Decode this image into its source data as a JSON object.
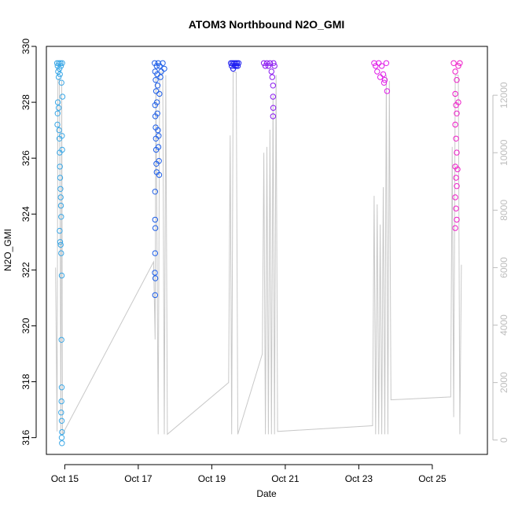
{
  "chart_data": {
    "type": "scatter",
    "title": "ATOM3 Northbound N2O_GMI",
    "xlabel": "Date",
    "ylabel": "N2O_GMI",
    "x_is_date": true,
    "xlim": [
      "2017-10-14T12:00:00",
      "2017-10-26T12:00:00"
    ],
    "ylim": [
      315.4,
      330.0
    ],
    "y2lim": [
      -500,
      13700
    ],
    "x_ticks": [
      {
        "value": "2017-10-15T00:00:00",
        "label": "Oct 15"
      },
      {
        "value": "2017-10-17T00:00:00",
        "label": "Oct 17"
      },
      {
        "value": "2017-10-19T00:00:00",
        "label": "Oct 19"
      },
      {
        "value": "2017-10-21T00:00:00",
        "label": "Oct 21"
      },
      {
        "value": "2017-10-23T00:00:00",
        "label": "Oct 23"
      },
      {
        "value": "2017-10-25T00:00:00",
        "label": "Oct 25"
      }
    ],
    "y_ticks": [
      316,
      318,
      320,
      322,
      324,
      326,
      328,
      330
    ],
    "y2_ticks": [
      0,
      2000,
      4000,
      6000,
      8000,
      10000,
      12000
    ],
    "grid": false,
    "legend": "none",
    "series": [
      {
        "color": "#3aa7e6",
        "points": [
          [
            "2017-10-14T19:00:00",
            329.4
          ],
          [
            "2017-10-14T19:20:00",
            329.3
          ],
          [
            "2017-10-14T19:40:00",
            329.1
          ],
          [
            "2017-10-14T20:00:00",
            328.9
          ],
          [
            "2017-10-14T20:10:00",
            329.4
          ],
          [
            "2017-10-14T20:30:00",
            329.2
          ],
          [
            "2017-10-14T20:50:00",
            329.0
          ],
          [
            "2017-10-14T21:10:00",
            329.4
          ],
          [
            "2017-10-14T21:30:00",
            329.3
          ],
          [
            "2017-10-14T21:50:00",
            328.7
          ],
          [
            "2017-10-14T19:10:00",
            327.2
          ],
          [
            "2017-10-14T19:20:00",
            327.6
          ],
          [
            "2017-10-14T19:30:00",
            328.0
          ],
          [
            "2017-10-14T20:00:00",
            327.8
          ],
          [
            "2017-10-14T20:20:00",
            327.0
          ],
          [
            "2017-10-14T20:30:00",
            326.7
          ],
          [
            "2017-10-14T20:40:00",
            326.2
          ],
          [
            "2017-10-14T20:50:00",
            325.7
          ],
          [
            "2017-10-14T21:00:00",
            325.3
          ],
          [
            "2017-10-14T21:10:00",
            324.9
          ],
          [
            "2017-10-14T21:20:00",
            324.6
          ],
          [
            "2017-10-14T21:30:00",
            324.3
          ],
          [
            "2017-10-14T21:40:00",
            323.9
          ],
          [
            "2017-10-14T20:40:00",
            323.4
          ],
          [
            "2017-10-14T21:00:00",
            323.0
          ],
          [
            "2017-10-14T21:20:00",
            322.9
          ],
          [
            "2017-10-14T21:40:00",
            322.6
          ],
          [
            "2017-10-14T22:00:00",
            321.8
          ],
          [
            "2017-10-14T21:50:00",
            319.5
          ],
          [
            "2017-10-14T22:00:00",
            317.8
          ],
          [
            "2017-10-14T21:50:00",
            317.3
          ],
          [
            "2017-10-14T21:40:00",
            316.9
          ],
          [
            "2017-10-14T22:00:00",
            316.6
          ],
          [
            "2017-10-14T22:10:00",
            316.2
          ],
          [
            "2017-10-14T22:00:00",
            316.0
          ],
          [
            "2017-10-14T22:10:00",
            315.8
          ],
          [
            "2017-10-14T22:20:00",
            329.4
          ],
          [
            "2017-10-14T22:30:00",
            328.2
          ],
          [
            "2017-10-14T22:10:00",
            326.8
          ],
          [
            "2017-10-14T22:20:00",
            326.3
          ]
        ]
      },
      {
        "color": "#1f5fe8",
        "points": [
          [
            "2017-10-17T10:40:00",
            329.4
          ],
          [
            "2017-10-17T11:00:00",
            329.1
          ],
          [
            "2017-10-17T11:20:00",
            328.8
          ],
          [
            "2017-10-17T11:40:00",
            328.4
          ],
          [
            "2017-10-17T12:00:00",
            329.3
          ],
          [
            "2017-10-17T12:20:00",
            329.0
          ],
          [
            "2017-10-17T12:40:00",
            328.6
          ],
          [
            "2017-10-17T13:00:00",
            329.4
          ],
          [
            "2017-10-17T14:00:00",
            329.3
          ],
          [
            "2017-10-17T15:00:00",
            329.1
          ],
          [
            "2017-10-17T16:00:00",
            329.4
          ],
          [
            "2017-10-17T17:00:00",
            329.2
          ],
          [
            "2017-10-17T11:00:00",
            327.9
          ],
          [
            "2017-10-17T11:10:00",
            327.5
          ],
          [
            "2017-10-17T11:20:00",
            327.1
          ],
          [
            "2017-10-17T11:30:00",
            326.7
          ],
          [
            "2017-10-17T11:40:00",
            326.3
          ],
          [
            "2017-10-17T11:50:00",
            325.8
          ],
          [
            "2017-10-17T12:00:00",
            325.5
          ],
          [
            "2017-10-17T11:00:00",
            324.8
          ],
          [
            "2017-10-17T11:00:00",
            323.8
          ],
          [
            "2017-10-17T11:10:00",
            323.5
          ],
          [
            "2017-10-17T11:00:00",
            322.6
          ],
          [
            "2017-10-17T10:50:00",
            321.9
          ],
          [
            "2017-10-17T11:10:00",
            321.7
          ],
          [
            "2017-10-17T11:00:00",
            321.1
          ],
          [
            "2017-10-17T12:30:00",
            327.6
          ],
          [
            "2017-10-17T12:50:00",
            327.0
          ],
          [
            "2017-10-17T13:10:00",
            326.4
          ],
          [
            "2017-10-17T13:30:00",
            325.9
          ],
          [
            "2017-10-17T13:40:00",
            325.4
          ],
          [
            "2017-10-17T13:20:00",
            326.8
          ],
          [
            "2017-10-17T12:10:00",
            328.0
          ],
          [
            "2017-10-17T13:50:00",
            328.3
          ],
          [
            "2017-10-17T14:30:00",
            328.9
          ]
        ]
      },
      {
        "color": "#1a1af0",
        "points": [
          [
            "2017-10-19T12:30:00",
            329.4
          ],
          [
            "2017-10-19T13:00:00",
            329.3
          ],
          [
            "2017-10-19T13:30:00",
            329.4
          ],
          [
            "2017-10-19T14:00:00",
            329.2
          ],
          [
            "2017-10-19T14:30:00",
            329.4
          ],
          [
            "2017-10-19T15:00:00",
            329.3
          ],
          [
            "2017-10-19T15:30:00",
            329.4
          ],
          [
            "2017-10-19T16:00:00",
            329.3
          ],
          [
            "2017-10-19T16:30:00",
            329.4
          ],
          [
            "2017-10-19T17:00:00",
            329.3
          ],
          [
            "2017-10-19T17:30:00",
            329.4
          ]
        ]
      },
      {
        "color": "#8a18f0",
        "points": [
          [
            "2017-10-20T10:00:00",
            329.4
          ],
          [
            "2017-10-20T11:00:00",
            329.3
          ],
          [
            "2017-10-20T12:00:00",
            329.4
          ],
          [
            "2017-10-20T13:00:00",
            329.3
          ],
          [
            "2017-10-20T14:00:00",
            329.4
          ],
          [
            "2017-10-20T15:00:00",
            329.1
          ],
          [
            "2017-10-20T15:30:00",
            328.9
          ],
          [
            "2017-10-20T16:00:00",
            328.6
          ],
          [
            "2017-10-20T16:00:00",
            328.2
          ],
          [
            "2017-10-20T16:10:00",
            327.8
          ],
          [
            "2017-10-20T16:00:00",
            327.5
          ],
          [
            "2017-10-20T16:20:00",
            329.4
          ],
          [
            "2017-10-20T17:00:00",
            329.3
          ]
        ]
      },
      {
        "color": "#e01ee8",
        "points": [
          [
            "2017-10-23T10:00:00",
            329.4
          ],
          [
            "2017-10-23T11:00:00",
            329.3
          ],
          [
            "2017-10-23T12:00:00",
            329.1
          ],
          [
            "2017-10-23T13:00:00",
            329.4
          ],
          [
            "2017-10-23T14:00:00",
            328.9
          ],
          [
            "2017-10-23T15:00:00",
            329.3
          ],
          [
            "2017-10-23T16:00:00",
            329.0
          ],
          [
            "2017-10-23T17:00:00",
            328.8
          ],
          [
            "2017-10-23T18:00:00",
            329.4
          ],
          [
            "2017-10-23T18:30:00",
            328.4
          ],
          [
            "2017-10-23T16:30:00",
            328.7
          ]
        ]
      },
      {
        "color": "#ee1ec8",
        "points": [
          [
            "2017-10-25T14:00:00",
            329.4
          ],
          [
            "2017-10-25T15:00:00",
            329.1
          ],
          [
            "2017-10-25T16:00:00",
            328.8
          ],
          [
            "2017-10-25T17:00:00",
            329.3
          ],
          [
            "2017-10-25T18:00:00",
            329.4
          ],
          [
            "2017-10-25T15:00:00",
            328.3
          ],
          [
            "2017-10-25T15:30:00",
            327.9
          ],
          [
            "2017-10-25T16:00:00",
            327.6
          ],
          [
            "2017-10-25T15:00:00",
            327.2
          ],
          [
            "2017-10-25T15:30:00",
            326.7
          ],
          [
            "2017-10-25T16:00:00",
            326.2
          ],
          [
            "2017-10-25T15:00:00",
            325.7
          ],
          [
            "2017-10-25T15:30:00",
            325.3
          ],
          [
            "2017-10-25T16:00:00",
            325.0
          ],
          [
            "2017-10-25T15:00:00",
            324.6
          ],
          [
            "2017-10-25T15:30:00",
            324.2
          ],
          [
            "2017-10-25T16:00:00",
            323.8
          ],
          [
            "2017-10-25T15:00:00",
            323.5
          ],
          [
            "2017-10-25T17:00:00",
            328.0
          ],
          [
            "2017-10-25T16:30:00",
            325.6
          ]
        ]
      }
    ],
    "altitude_series": {
      "color": "#c8c8c8",
      "points": [
        [
          "2017-10-14T18:00:00",
          6000
        ],
        [
          "2017-10-14T19:00:00",
          300
        ],
        [
          "2017-10-14T19:30:00",
          12500
        ],
        [
          "2017-10-14T20:30:00",
          12600
        ],
        [
          "2017-10-14T21:30:00",
          200
        ],
        [
          "2017-10-14T22:00:00",
          12500
        ],
        [
          "2017-10-14T22:30:00",
          200
        ],
        [
          "2017-10-17T10:00:00",
          6200
        ],
        [
          "2017-10-17T11:00:00",
          3500
        ],
        [
          "2017-10-17T11:30:00",
          12700
        ],
        [
          "2017-10-17T13:00:00",
          200
        ],
        [
          "2017-10-17T14:00:00",
          12800
        ],
        [
          "2017-10-17T16:00:00",
          12800
        ],
        [
          "2017-10-17T17:00:00",
          200
        ],
        [
          "2017-10-17T18:00:00",
          12700
        ],
        [
          "2017-10-17T19:00:00",
          200
        ],
        [
          "2017-10-19T11:00:00",
          2000
        ],
        [
          "2017-10-19T12:00:00",
          10600
        ],
        [
          "2017-10-19T13:00:00",
          200
        ],
        [
          "2017-10-19T14:00:00",
          12800
        ],
        [
          "2017-10-19T16:00:00",
          12800
        ],
        [
          "2017-10-19T17:00:00",
          200
        ],
        [
          "2017-10-20T09:00:00",
          3000
        ],
        [
          "2017-10-20T10:00:00",
          10000
        ],
        [
          "2017-10-20T11:00:00",
          200
        ],
        [
          "2017-10-20T12:00:00",
          10200
        ],
        [
          "2017-10-20T13:00:00",
          200
        ],
        [
          "2017-10-20T14:00:00",
          10800
        ],
        [
          "2017-10-20T15:00:00",
          200
        ],
        [
          "2017-10-20T16:00:00",
          12000
        ],
        [
          "2017-10-20T17:00:00",
          200
        ],
        [
          "2017-10-20T18:00:00",
          12700
        ],
        [
          "2017-10-20T19:00:00",
          300
        ],
        [
          "2017-10-23T09:00:00",
          500
        ],
        [
          "2017-10-23T10:00:00",
          8500
        ],
        [
          "2017-10-23T11:00:00",
          200
        ],
        [
          "2017-10-23T12:00:00",
          8200
        ],
        [
          "2017-10-23T13:00:00",
          200
        ],
        [
          "2017-10-23T14:00:00",
          7500
        ],
        [
          "2017-10-23T15:00:00",
          200
        ],
        [
          "2017-10-23T16:00:00",
          8800
        ],
        [
          "2017-10-23T17:00:00",
          200
        ],
        [
          "2017-10-23T18:00:00",
          12700
        ],
        [
          "2017-10-23T19:00:00",
          200
        ],
        [
          "2017-10-23T20:00:00",
          12500
        ],
        [
          "2017-10-23T21:00:00",
          1400
        ],
        [
          "2017-10-25T12:00:00",
          1500
        ],
        [
          "2017-10-25T13:00:00",
          10200
        ],
        [
          "2017-10-25T14:00:00",
          800
        ],
        [
          "2017-10-25T15:00:00",
          12700
        ],
        [
          "2017-10-25T17:00:00",
          12700
        ],
        [
          "2017-10-25T18:00:00",
          200
        ],
        [
          "2017-10-25T19:00:00",
          6100
        ]
      ]
    }
  }
}
